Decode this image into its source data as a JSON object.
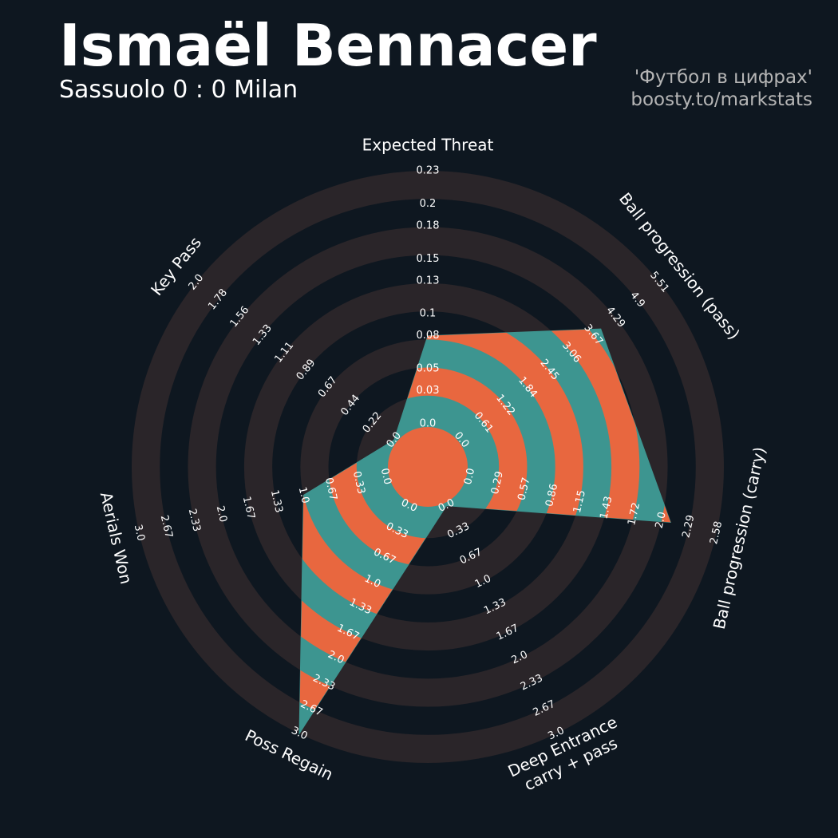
{
  "chart_data": {
    "type": "radar",
    "title": "Ismaël Bennacer",
    "subtitle": "Sassuolo 0 : 0 Milan",
    "annotations": [
      "'Футбол в цифрах'",
      "boosty.to/markstats"
    ],
    "categories": [
      "Expected Threat",
      "Ball progression (pass)",
      "Ball progression (carry)",
      "Deep Entrance\ncarry + pass",
      "Poss Regain",
      "Aerials Won",
      "Key Pass"
    ],
    "values": [
      0.08,
      3.88,
      2.1,
      0,
      3.0,
      1.0,
      0
    ],
    "lims": [
      [
        0,
        0.23
      ],
      [
        0,
        5.51
      ],
      [
        0,
        2.58
      ],
      [
        0,
        3
      ],
      [
        0,
        3
      ],
      [
        0,
        3
      ],
      [
        0,
        2
      ]
    ],
    "ticks": [
      [
        {
          "value": 0,
          "label": "0.0"
        },
        0.03,
        0.05,
        0.08,
        0.1,
        0.13,
        0.15,
        0.18,
        0.2,
        0.23
      ],
      [
        {
          "value": 0,
          "label": "0.0"
        },
        0.61,
        1.22,
        1.84,
        2.45,
        3.06,
        3.67,
        4.29,
        4.9,
        5.51
      ],
      [
        {
          "value": 0,
          "label": "0.0"
        },
        0.29,
        0.57,
        0.86,
        1.15,
        1.43,
        1.72,
        {
          "value": 2,
          "label": "2.0"
        },
        2.29,
        2.58
      ],
      [
        {
          "value": 0,
          "label": "0.0"
        },
        0.33,
        0.67,
        {
          "value": 1,
          "label": "1.0"
        },
        1.33,
        1.67,
        {
          "value": 2,
          "label": "2.0"
        },
        2.33,
        2.67,
        {
          "value": 3,
          "label": "3.0"
        }
      ],
      [
        {
          "value": 0,
          "label": "0.0"
        },
        0.33,
        0.67,
        {
          "value": 1,
          "label": "1.0"
        },
        1.33,
        1.67,
        {
          "value": 2,
          "label": "2.0"
        },
        2.33,
        2.67,
        {
          "value": 3,
          "label": "3.0"
        }
      ],
      [
        {
          "value": 0,
          "label": "0.0"
        },
        0.33,
        0.67,
        {
          "value": 1,
          "label": "1.0"
        },
        1.33,
        1.67,
        {
          "value": 2,
          "label": "2.0"
        },
        2.33,
        2.67,
        {
          "value": 3,
          "label": "3.0"
        }
      ],
      [
        {
          "value": 0,
          "label": "0.0"
        },
        0.22,
        0.44,
        0.67,
        0.89,
        1.11,
        1.33,
        1.56,
        1.78,
        {
          "value": 2,
          "label": "2.0"
        }
      ]
    ],
    "colors": [
      "#3d9590",
      "#e8673f"
    ],
    "ring_color": "#2a2529"
  }
}
